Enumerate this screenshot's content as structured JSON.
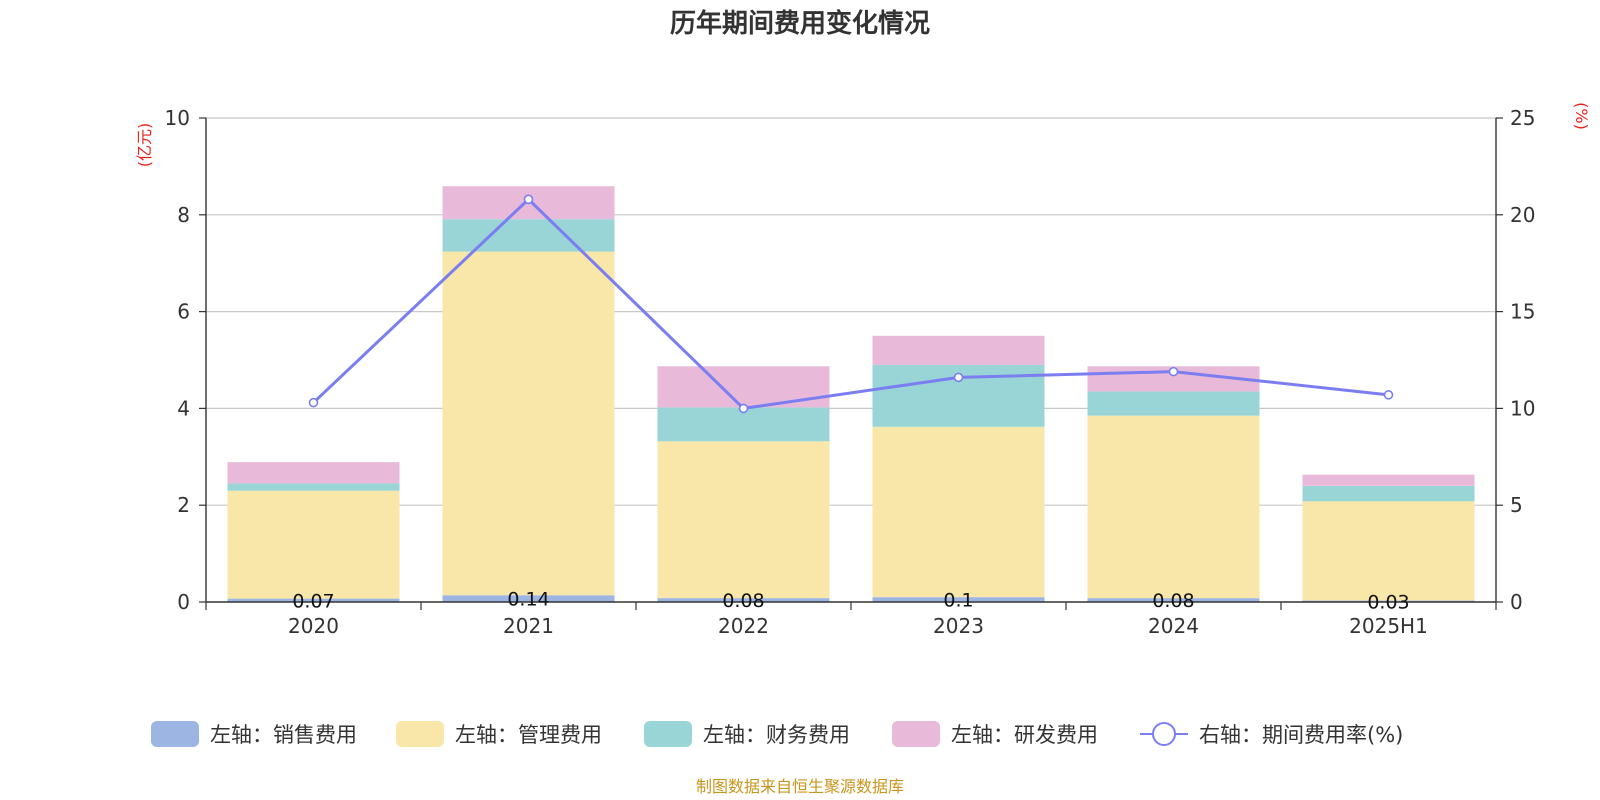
{
  "chart_data": {
    "type": "bar",
    "title": "历年期间费用变化情况",
    "left_unit": "(亿元)",
    "right_unit": "(%)",
    "categories": [
      "2020",
      "2021",
      "2022",
      "2023",
      "2024",
      "2025H1"
    ],
    "left_axis": {
      "min": 0,
      "max": 10,
      "ticks": [
        "0",
        "2",
        "4",
        "6",
        "8",
        "10"
      ]
    },
    "right_axis": {
      "min": 0,
      "max": 25,
      "ticks": [
        "0",
        "5",
        "10",
        "15",
        "20",
        "25"
      ]
    },
    "grid": true,
    "stacked": true,
    "series": [
      {
        "name": "左轴：销售费用",
        "axis": "left",
        "kind": "bar",
        "color": "#9db5e3",
        "values": [
          0.07,
          0.14,
          0.08,
          0.1,
          0.08,
          0.03
        ],
        "labels": [
          "0.07",
          "0.14",
          "0.08",
          "0.1",
          "0.08",
          "0.03"
        ]
      },
      {
        "name": "左轴：管理费用",
        "axis": "left",
        "kind": "bar",
        "color": "#f8e7a8",
        "values": [
          2.23,
          7.1,
          3.24,
          3.52,
          3.77,
          2.05
        ]
      },
      {
        "name": "左轴：财务费用",
        "axis": "left",
        "kind": "bar",
        "color": "#99d5d6",
        "values": [
          0.15,
          0.67,
          0.7,
          1.28,
          0.5,
          0.32
        ]
      },
      {
        "name": "左轴：研发费用",
        "axis": "left",
        "kind": "bar",
        "color": "#e8b9d9",
        "values": [
          0.44,
          0.68,
          0.85,
          0.6,
          0.52,
          0.23
        ]
      },
      {
        "name": "右轴：期间费用率(%)",
        "axis": "right",
        "kind": "line",
        "color": "#7b7ef0",
        "values": [
          10.3,
          20.8,
          10.0,
          11.6,
          11.9,
          10.7
        ]
      }
    ],
    "legend": "bottom"
  },
  "source": "制图数据来自恒生聚源数据库"
}
